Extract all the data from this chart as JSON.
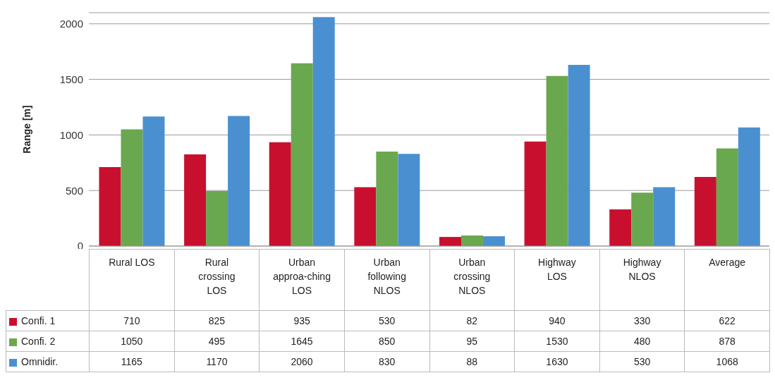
{
  "chart_data": {
    "type": "bar",
    "ylabel": "Range [m]",
    "categories": [
      "Rural LOS",
      "Rural crossing LOS",
      "Urban approa-ching LOS",
      "Urban following NLOS",
      "Urban crossing NLOS",
      "Highway LOS",
      "Highway NLOS",
      "Average"
    ],
    "series": [
      {
        "name": "Confi. 1",
        "color": "#c8102e",
        "values": [
          710,
          825,
          935,
          530,
          82,
          940,
          330,
          622
        ]
      },
      {
        "name": "Confi. 2",
        "color": "#6aa84f",
        "values": [
          1050,
          495,
          1645,
          850,
          95,
          1530,
          480,
          878
        ]
      },
      {
        "name": "Omnidir.",
        "color": "#4a90d0",
        "values": [
          1165,
          1170,
          2060,
          830,
          88,
          1630,
          530,
          1068
        ]
      }
    ],
    "ylim": [
      0,
      2100
    ],
    "yticks": [
      0,
      500,
      1000,
      1500,
      2000
    ],
    "grid": "y",
    "legend": "bottom",
    "data_labels": true
  }
}
